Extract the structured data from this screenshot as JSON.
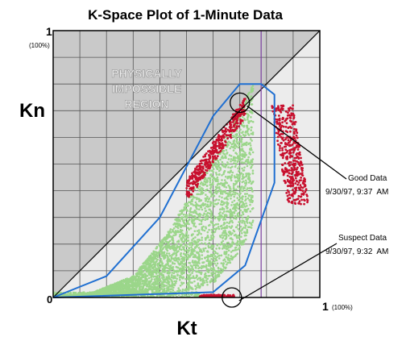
{
  "chart_data": {
    "type": "scatter",
    "title": "K-Space Plot of 1-Minute Data",
    "xlabel": "Kt",
    "ylabel": "Kn",
    "xlim": [
      0,
      1
    ],
    "ylim": [
      0,
      1
    ],
    "grid": true,
    "tick_labels": {
      "origin": "0",
      "x_max": "1",
      "x_max_note": "(100%)",
      "y_max": "1",
      "y_max_note": "(100%)"
    },
    "region_label": [
      "PHYSICALLY",
      "IMPOSSIBLE",
      "REGION"
    ],
    "series": [
      {
        "description": "bulk scatter",
        "color": "#9bd68a",
        "approx_envelope": {
          "lower": [
            [
              0.0,
              0.0
            ],
            [
              0.5,
              0.02
            ],
            [
              0.6,
              0.05
            ],
            [
              0.72,
              0.2
            ],
            [
              0.82,
              0.45
            ],
            [
              0.88,
              0.63
            ],
            [
              0.82,
              0.78
            ]
          ],
          "upper": [
            [
              0.0,
              0.0
            ],
            [
              0.15,
              0.02
            ],
            [
              0.3,
              0.08
            ],
            [
              0.42,
              0.23
            ],
            [
              0.55,
              0.45
            ],
            [
              0.66,
              0.62
            ],
            [
              0.75,
              0.8
            ]
          ]
        }
      },
      {
        "description": "scatter outliers",
        "color": "#c8102e",
        "clusters": [
          {
            "kt_range": [
              0.5,
              0.72
            ],
            "kn_range": [
              0.38,
              0.7
            ],
            "side": "upper-left"
          },
          {
            "kt_range": [
              0.82,
              0.98
            ],
            "kn_range": [
              0.35,
              0.72
            ],
            "side": "right"
          },
          {
            "kt_range": [
              0.55,
              0.68
            ],
            "kn_range": [
              0.0,
              0.01
            ],
            "side": "bottom"
          }
        ]
      }
    ],
    "reference_lines": [
      {
        "type": "diagonal",
        "from": [
          0,
          0
        ],
        "to": [
          1,
          1
        ],
        "color": "#000000"
      },
      {
        "type": "vertical",
        "x": 0.78,
        "color": "#7a3fa0"
      }
    ],
    "envelope_outline": {
      "color": "#1f6fd1",
      "points": [
        [
          0.0,
          0.0
        ],
        [
          0.6,
          0.02
        ],
        [
          0.72,
          0.12
        ],
        [
          0.83,
          0.43
        ],
        [
          0.83,
          0.76
        ],
        [
          0.78,
          0.8
        ],
        [
          0.7,
          0.8
        ],
        [
          0.6,
          0.68
        ],
        [
          0.4,
          0.3
        ],
        [
          0.2,
          0.08
        ],
        [
          0.0,
          0.0
        ]
      ]
    },
    "annotations": [
      {
        "label": "Good Data",
        "timestamp": "9/30/97, 9:37  AM",
        "point": [
          0.7,
          0.73
        ]
      },
      {
        "label": "Suspect Data",
        "timestamp": "9/30/97, 9:32  AM",
        "point": [
          0.67,
          0.0
        ]
      }
    ]
  }
}
